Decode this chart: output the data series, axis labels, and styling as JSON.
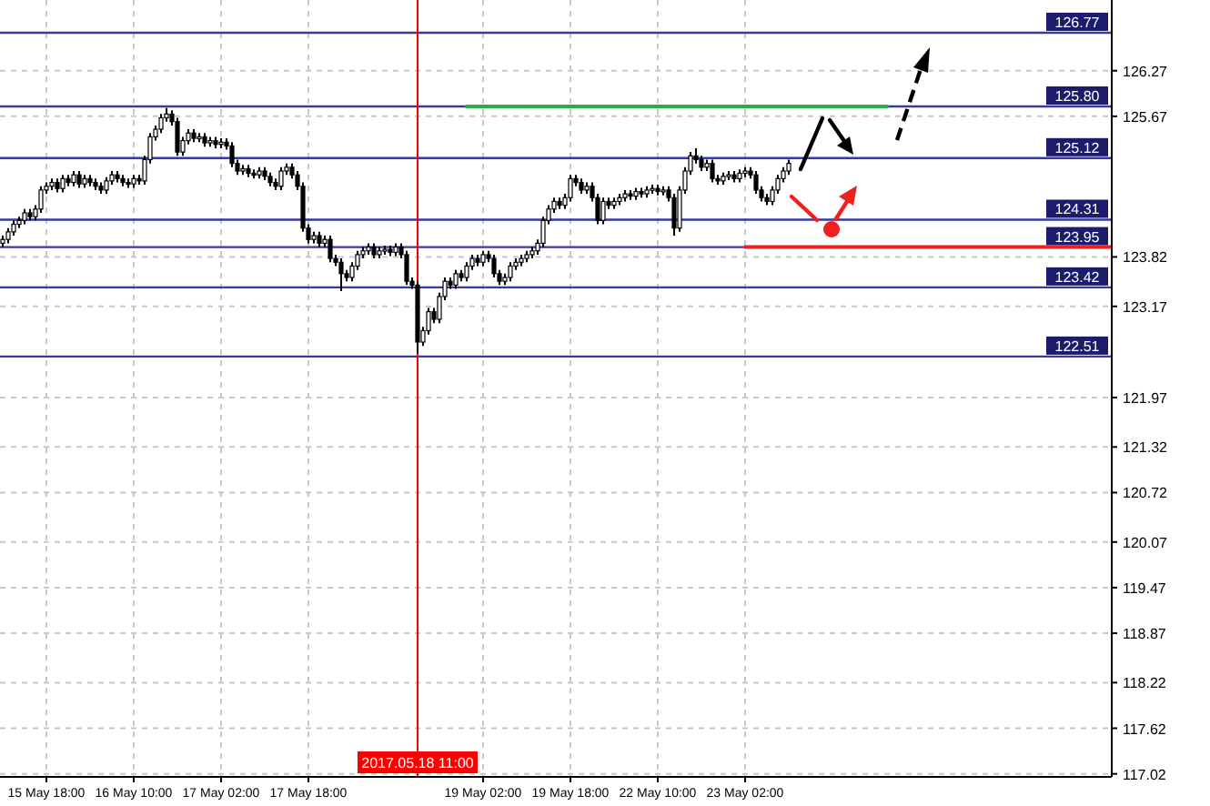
{
  "chart_data": {
    "type": "candlestick",
    "categories": [
      null,
      null,
      null,
      null,
      null,
      null,
      null,
      null,
      "15 May 18:00",
      null,
      null,
      null,
      null,
      null,
      null,
      null,
      null,
      null,
      null,
      null,
      null,
      null,
      null,
      null,
      "16 May 10:00",
      null,
      null,
      null,
      null,
      null,
      null,
      null,
      null,
      null,
      null,
      null,
      null,
      null,
      null,
      null,
      "17 May 02:00",
      null,
      null,
      null,
      null,
      null,
      null,
      null,
      null,
      null,
      null,
      null,
      null,
      null,
      null,
      null,
      "17 May 18:00",
      null,
      null,
      null,
      null,
      null,
      null,
      null,
      null,
      null,
      null,
      null,
      null,
      null,
      null,
      null,
      null,
      null,
      null,
      null,
      "2017.05.18 11:00",
      null,
      null,
      null,
      null,
      null,
      null,
      null,
      null,
      null,
      null,
      null,
      "19 May 02:00",
      null,
      null,
      null,
      null,
      null,
      null,
      null,
      null,
      null,
      null,
      null,
      null,
      null,
      null,
      null,
      "19 May 18:00",
      null,
      null,
      null,
      null,
      null,
      null,
      null,
      null,
      null,
      null,
      null,
      null,
      null,
      null,
      null,
      "22 May 10:00",
      null,
      null,
      null,
      null,
      null,
      null,
      null,
      null,
      null,
      null,
      null,
      null,
      null,
      null,
      null,
      "23 May 02:00",
      null,
      null,
      null,
      null,
      null,
      null,
      null,
      null,
      null,
      null,
      null,
      null,
      null,
      null,
      null,
      null,
      null,
      null,
      null,
      null,
      null,
      null,
      null,
      null,
      null,
      null,
      null,
      null,
      null,
      null,
      null,
      null,
      null,
      null,
      null,
      null,
      null,
      null,
      null,
      null,
      null,
      null,
      null,
      null,
      null,
      null,
      null,
      null,
      null,
      null,
      null,
      null,
      null,
      null,
      null,
      null,
      null,
      null,
      null,
      null,
      null,
      null,
      null,
      null,
      null,
      null,
      null
    ],
    "ohlc": [
      [
        124.0,
        124.1,
        123.95,
        124.05
      ],
      [
        124.05,
        124.2,
        124.0,
        124.15
      ],
      [
        124.15,
        124.3,
        124.1,
        124.25
      ],
      [
        124.25,
        124.35,
        124.2,
        124.3
      ],
      [
        124.3,
        124.45,
        124.25,
        124.4
      ],
      [
        124.4,
        124.45,
        124.3,
        124.35
      ],
      [
        124.35,
        124.5,
        124.3,
        124.45
      ],
      [
        124.45,
        124.75,
        124.4,
        124.7
      ],
      [
        124.7,
        124.8,
        124.65,
        124.75
      ],
      [
        124.75,
        124.85,
        124.7,
        124.8
      ],
      [
        124.8,
        124.85,
        124.67,
        124.72
      ],
      [
        124.72,
        124.9,
        124.67,
        124.85
      ],
      [
        124.85,
        124.9,
        124.75,
        124.8
      ],
      [
        124.8,
        124.95,
        124.75,
        124.9
      ],
      [
        124.9,
        124.95,
        124.73,
        124.78
      ],
      [
        124.78,
        124.9,
        124.73,
        124.85
      ],
      [
        124.85,
        124.9,
        124.75,
        124.8
      ],
      [
        124.8,
        124.85,
        124.7,
        124.75
      ],
      [
        124.75,
        124.8,
        124.65,
        124.7
      ],
      [
        124.7,
        124.87,
        124.65,
        124.82
      ],
      [
        124.82,
        124.95,
        124.77,
        124.9
      ],
      [
        124.9,
        124.95,
        124.8,
        124.85
      ],
      [
        124.85,
        124.9,
        124.75,
        124.8
      ],
      [
        124.8,
        124.85,
        124.73,
        124.78
      ],
      [
        124.78,
        124.9,
        124.73,
        124.85
      ],
      [
        124.85,
        124.9,
        124.77,
        124.82
      ],
      [
        124.82,
        125.15,
        124.77,
        125.1
      ],
      [
        125.1,
        125.45,
        125.05,
        125.4
      ],
      [
        125.4,
        125.55,
        125.35,
        125.5
      ],
      [
        125.5,
        125.7,
        125.45,
        125.65
      ],
      [
        125.65,
        125.78,
        125.6,
        125.7
      ],
      [
        125.7,
        125.75,
        125.55,
        125.6
      ],
      [
        125.6,
        125.65,
        125.15,
        125.2
      ],
      [
        125.2,
        125.4,
        125.15,
        125.35
      ],
      [
        125.35,
        125.5,
        125.3,
        125.45
      ],
      [
        125.45,
        125.5,
        125.33,
        125.38
      ],
      [
        125.38,
        125.45,
        125.33,
        125.4
      ],
      [
        125.4,
        125.45,
        125.27,
        125.32
      ],
      [
        125.32,
        125.4,
        125.27,
        125.35
      ],
      [
        125.35,
        125.4,
        125.25,
        125.3
      ],
      [
        125.3,
        125.38,
        125.25,
        125.33
      ],
      [
        125.33,
        125.38,
        125.23,
        125.28
      ],
      [
        125.28,
        125.33,
        125.0,
        125.05
      ],
      [
        125.05,
        125.1,
        124.9,
        124.95
      ],
      [
        124.95,
        125.03,
        124.9,
        124.98
      ],
      [
        124.98,
        125.03,
        124.87,
        124.92
      ],
      [
        124.92,
        124.97,
        124.85,
        124.9
      ],
      [
        124.9,
        125.0,
        124.85,
        124.95
      ],
      [
        124.95,
        125.0,
        124.83,
        124.88
      ],
      [
        124.88,
        124.93,
        124.75,
        124.8
      ],
      [
        124.8,
        124.85,
        124.7,
        124.75
      ],
      [
        124.75,
        125.0,
        124.7,
        124.95
      ],
      [
        124.95,
        125.05,
        124.9,
        125.0
      ],
      [
        125.0,
        125.05,
        124.85,
        124.9
      ],
      [
        124.9,
        124.95,
        124.7,
        124.75
      ],
      [
        124.75,
        124.8,
        124.15,
        124.2
      ],
      [
        124.2,
        124.25,
        124.0,
        124.05
      ],
      [
        124.05,
        124.15,
        124.0,
        124.1
      ],
      [
        124.1,
        124.15,
        123.95,
        124.0
      ],
      [
        124.0,
        124.1,
        123.95,
        124.05
      ],
      [
        124.05,
        124.1,
        123.75,
        123.8
      ],
      [
        123.8,
        123.85,
        123.7,
        123.75
      ],
      [
        123.75,
        123.8,
        123.37,
        123.6
      ],
      [
        123.6,
        123.65,
        123.5,
        123.55
      ],
      [
        123.55,
        123.75,
        123.5,
        123.7
      ],
      [
        123.7,
        123.9,
        123.65,
        123.85
      ],
      [
        123.85,
        123.95,
        123.8,
        123.9
      ],
      [
        123.9,
        124.0,
        123.85,
        123.95
      ],
      [
        123.95,
        124.0,
        123.8,
        123.85
      ],
      [
        123.85,
        123.95,
        123.8,
        123.9
      ],
      [
        123.9,
        123.97,
        123.85,
        123.92
      ],
      [
        123.92,
        123.97,
        123.83,
        123.88
      ],
      [
        123.88,
        124.0,
        123.83,
        123.95
      ],
      [
        123.95,
        124.0,
        123.8,
        123.85
      ],
      [
        123.85,
        123.9,
        123.45,
        123.5
      ],
      [
        123.5,
        123.55,
        123.4,
        123.45
      ],
      [
        123.45,
        123.5,
        122.55,
        122.7
      ],
      [
        122.7,
        122.9,
        122.65,
        122.85
      ],
      [
        122.85,
        123.15,
        122.8,
        123.1
      ],
      [
        123.1,
        123.15,
        122.95,
        123.0
      ],
      [
        123.0,
        123.35,
        122.95,
        123.3
      ],
      [
        123.3,
        123.55,
        123.25,
        123.5
      ],
      [
        123.5,
        123.55,
        123.4,
        123.45
      ],
      [
        123.45,
        123.65,
        123.4,
        123.6
      ],
      [
        123.6,
        123.65,
        123.5,
        123.55
      ],
      [
        123.55,
        123.75,
        123.5,
        123.7
      ],
      [
        123.7,
        123.85,
        123.65,
        123.8
      ],
      [
        123.8,
        123.85,
        123.7,
        123.75
      ],
      [
        123.75,
        123.9,
        123.7,
        123.85
      ],
      [
        123.85,
        123.9,
        123.75,
        123.8
      ],
      [
        123.8,
        123.85,
        123.55,
        123.6
      ],
      [
        123.6,
        123.65,
        123.45,
        123.5
      ],
      [
        123.5,
        123.6,
        123.45,
        123.55
      ],
      [
        123.55,
        123.75,
        123.5,
        123.7
      ],
      [
        123.7,
        123.8,
        123.65,
        123.75
      ],
      [
        123.75,
        123.85,
        123.7,
        123.8
      ],
      [
        123.8,
        123.9,
        123.75,
        123.85
      ],
      [
        123.85,
        123.95,
        123.8,
        123.9
      ],
      [
        123.9,
        124.05,
        123.85,
        124.0
      ],
      [
        124.0,
        124.35,
        123.95,
        124.3
      ],
      [
        124.3,
        124.5,
        124.25,
        124.45
      ],
      [
        124.45,
        124.6,
        124.4,
        124.55
      ],
      [
        124.55,
        124.6,
        124.45,
        124.5
      ],
      [
        124.5,
        124.65,
        124.45,
        124.6
      ],
      [
        124.6,
        124.9,
        124.55,
        124.85
      ],
      [
        124.85,
        124.9,
        124.75,
        124.8
      ],
      [
        124.8,
        124.85,
        124.65,
        124.7
      ],
      [
        124.7,
        124.8,
        124.65,
        124.75
      ],
      [
        124.75,
        124.8,
        124.55,
        124.6
      ],
      [
        124.6,
        124.65,
        124.25,
        124.3
      ],
      [
        124.3,
        124.6,
        124.25,
        124.55
      ],
      [
        124.55,
        124.6,
        124.45,
        124.5
      ],
      [
        124.5,
        124.6,
        124.45,
        124.55
      ],
      [
        124.55,
        124.65,
        124.5,
        124.6
      ],
      [
        124.6,
        124.7,
        124.55,
        124.65
      ],
      [
        124.65,
        124.7,
        124.57,
        124.62
      ],
      [
        124.62,
        124.73,
        124.57,
        124.68
      ],
      [
        124.68,
        124.73,
        124.6,
        124.65
      ],
      [
        124.65,
        124.75,
        124.6,
        124.7
      ],
      [
        124.7,
        124.77,
        124.65,
        124.72
      ],
      [
        124.72,
        124.77,
        124.63,
        124.68
      ],
      [
        124.68,
        124.75,
        124.63,
        124.7
      ],
      [
        124.7,
        124.75,
        124.55,
        124.6
      ],
      [
        124.6,
        124.65,
        124.1,
        124.2
      ],
      [
        124.2,
        124.75,
        124.15,
        124.7
      ],
      [
        124.7,
        125.0,
        124.65,
        124.95
      ],
      [
        124.95,
        125.2,
        124.9,
        125.15
      ],
      [
        125.15,
        125.25,
        125.05,
        125.1
      ],
      [
        125.1,
        125.15,
        124.95,
        125.0
      ],
      [
        125.0,
        125.1,
        124.95,
        125.05
      ],
      [
        125.05,
        125.1,
        124.8,
        124.85
      ],
      [
        124.85,
        124.9,
        124.77,
        124.82
      ],
      [
        124.82,
        124.93,
        124.77,
        124.88
      ],
      [
        124.88,
        124.95,
        124.83,
        124.9
      ],
      [
        124.9,
        124.95,
        124.8,
        124.85
      ],
      [
        124.85,
        124.97,
        124.8,
        124.92
      ],
      [
        124.92,
        125.0,
        124.87,
        124.95
      ],
      [
        124.95,
        125.0,
        124.85,
        124.9
      ],
      [
        124.9,
        124.95,
        124.65,
        124.7
      ],
      [
        124.7,
        124.75,
        124.55,
        124.6
      ],
      [
        124.6,
        124.65,
        124.5,
        124.55
      ],
      [
        124.55,
        124.75,
        124.5,
        124.7
      ],
      [
        124.7,
        124.9,
        124.65,
        124.85
      ],
      [
        124.85,
        125.0,
        124.8,
        124.95
      ],
      [
        124.95,
        125.1,
        124.9,
        125.05
      ],
      null,
      null,
      null,
      null,
      null,
      null,
      null,
      null,
      null,
      null,
      null,
      null,
      null,
      null,
      null,
      null,
      null,
      null,
      null,
      null,
      null,
      null,
      null,
      null,
      null,
      null,
      null,
      null,
      null,
      null,
      null,
      null,
      null,
      null,
      null,
      null,
      null,
      null,
      null,
      null,
      null,
      null,
      null,
      null,
      null,
      null,
      null,
      null,
      null,
      null,
      null,
      null,
      null,
      null,
      null,
      null,
      null,
      null,
      null
    ],
    "series": [
      {
        "type": "line",
        "color": "#22b14c",
        "values": [
          null,
          null,
          null,
          null,
          null,
          null,
          null,
          null,
          null,
          null,
          null,
          null,
          null,
          null,
          null,
          null,
          null,
          null,
          null,
          null,
          null,
          null,
          null,
          null,
          null,
          null,
          null,
          null,
          null,
          null,
          null,
          null,
          null,
          null,
          null,
          null,
          null,
          null,
          null,
          null,
          null,
          null,
          null,
          null,
          null,
          null,
          null,
          null,
          null,
          null,
          null,
          null,
          null,
          null,
          null,
          null,
          null,
          null,
          null,
          null,
          null,
          null,
          null,
          null,
          null,
          null,
          null,
          null,
          null,
          null,
          null,
          null,
          null,
          null,
          null,
          null,
          null,
          null,
          null,
          null,
          null,
          null,
          null,
          null,
          null,
          125.8,
          125.8,
          125.8,
          125.8,
          125.8,
          125.8,
          125.8,
          125.8,
          125.8,
          125.8,
          125.8,
          125.8,
          125.8,
          125.8,
          125.8,
          125.8,
          125.8,
          125.8,
          125.8,
          125.8,
          125.8,
          125.8,
          125.8,
          125.8,
          125.8,
          125.8,
          125.8,
          125.8,
          125.8,
          125.8,
          125.8,
          125.8,
          125.8,
          125.8,
          125.8,
          125.8,
          125.8,
          125.8,
          125.8,
          125.8,
          125.8,
          125.8,
          125.8,
          125.8,
          125.8,
          125.8,
          125.8,
          125.8,
          125.8,
          125.8,
          125.8,
          125.8,
          125.8,
          125.8,
          125.8,
          125.8,
          125.8,
          125.8,
          125.8,
          125.8,
          125.8,
          125.8,
          125.8,
          125.8,
          125.8,
          125.8,
          125.8,
          125.8,
          125.8,
          125.8,
          125.8,
          125.8,
          125.8,
          125.8,
          125.8,
          125.8,
          125.8,
          125.8,
          null,
          null,
          null,
          null,
          null,
          null,
          null,
          null,
          null,
          null,
          null,
          null,
          null,
          null,
          null,
          null,
          null,
          null,
          null,
          null,
          null,
          null,
          null,
          null,
          null,
          null,
          null,
          null,
          null,
          null,
          null,
          null,
          null,
          null,
          null,
          null,
          null,
          null,
          null,
          null,
          null
        ]
      },
      {
        "type": "line",
        "color": "#ee2020",
        "values": [
          null,
          null,
          null,
          null,
          null,
          null,
          null,
          null,
          null,
          null,
          null,
          null,
          null,
          null,
          null,
          null,
          null,
          null,
          null,
          null,
          null,
          null,
          null,
          null,
          null,
          null,
          null,
          null,
          null,
          null,
          null,
          null,
          null,
          null,
          null,
          null,
          null,
          null,
          null,
          null,
          null,
          null,
          null,
          null,
          null,
          null,
          null,
          null,
          null,
          null,
          null,
          null,
          null,
          null,
          null,
          null,
          null,
          null,
          null,
          null,
          null,
          null,
          null,
          null,
          null,
          null,
          null,
          null,
          null,
          null,
          null,
          null,
          null,
          null,
          null,
          null,
          null,
          null,
          null,
          null,
          null,
          null,
          null,
          null,
          null,
          null,
          null,
          null,
          null,
          null,
          null,
          null,
          null,
          null,
          null,
          null,
          null,
          null,
          null,
          null,
          null,
          null,
          null,
          null,
          null,
          null,
          null,
          null,
          null,
          null,
          null,
          null,
          null,
          null,
          null,
          null,
          null,
          null,
          null,
          null,
          null,
          null,
          null,
          null,
          null,
          null,
          null,
          null,
          null,
          null,
          null,
          null,
          null,
          null,
          null,
          null,
          123.95,
          123.95,
          123.95,
          123.95,
          123.95,
          123.95,
          123.95,
          123.95,
          123.95,
          123.95,
          123.95,
          123.95,
          123.95,
          123.95,
          123.95,
          123.95,
          123.95,
          123.95,
          123.95,
          123.95,
          123.95,
          123.95,
          123.95,
          123.95,
          123.95,
          123.95,
          123.95,
          123.95,
          123.95,
          123.95,
          123.95,
          123.95,
          123.95,
          123.95,
          123.95,
          123.95,
          123.95,
          123.95,
          123.95,
          123.95,
          123.95,
          123.95,
          123.95,
          123.95,
          123.95,
          123.95,
          123.95,
          123.95,
          123.95,
          123.95,
          123.95,
          123.95,
          123.95,
          123.95,
          123.95,
          123.95,
          123.95,
          123.95,
          123.95,
          123.95,
          123.95,
          123.95,
          123.95,
          123.95,
          123.95,
          123.95,
          123.95,
          123.95
        ]
      }
    ],
    "ylim": [
      116.98,
      127.2
    ],
    "yticks": [
      126.27,
      125.67,
      123.82,
      123.17,
      121.97,
      121.32,
      120.72,
      120.07,
      119.47,
      118.87,
      118.22,
      117.62,
      117.02
    ],
    "grid": true,
    "ref_lines": [
      {
        "axis": "y",
        "value": 126.77,
        "label": "126.77",
        "color": "#3a3a9a"
      },
      {
        "axis": "y",
        "value": 125.8,
        "label": "125.80",
        "color": "#3a3a9a"
      },
      {
        "axis": "y",
        "value": 125.12,
        "label": "125.12",
        "color": "#3a3a9a"
      },
      {
        "axis": "y",
        "value": 124.31,
        "label": "124.31",
        "color": "#3a3a9a"
      },
      {
        "axis": "y",
        "value": 123.95,
        "label": "123.95",
        "color": "#3a3a9a"
      },
      {
        "axis": "y",
        "value": 123.42,
        "label": "123.42",
        "color": "#3a3a9a"
      },
      {
        "axis": "y",
        "value": 122.51,
        "label": "122.51",
        "color": "#3a3a9a"
      },
      {
        "axis": "x",
        "value": "2017.05.18 11:00",
        "color": "#ff0000"
      }
    ]
  }
}
